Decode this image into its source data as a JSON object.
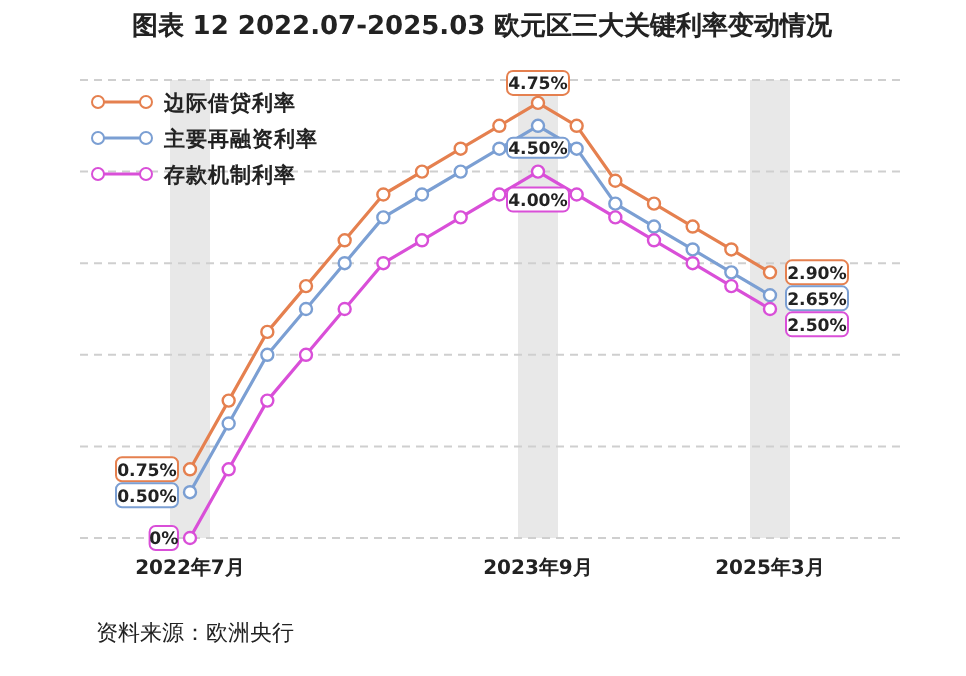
{
  "chart_data": {
    "type": "line",
    "title": "图表 12 2022.07-2025.03 欧元区三大关键利率变动情况",
    "annotations": [
      "资料来源：欧洲央行"
    ],
    "categories": [
      "2022年7月",
      null,
      null,
      null,
      null,
      null,
      null,
      null,
      null,
      "2023年9月",
      null,
      null,
      null,
      null,
      null,
      "2025年3月"
    ],
    "series": [
      {
        "name": "边际借贷利率",
        "color": "#e5804f",
        "values": [
          0.75,
          1.5,
          2.25,
          2.75,
          3.25,
          3.75,
          4.0,
          4.25,
          4.5,
          4.75,
          4.5,
          3.9,
          3.65,
          3.4,
          3.15,
          2.9
        ],
        "value_labels": [
          "0.75%",
          null,
          null,
          null,
          null,
          null,
          null,
          null,
          null,
          "4.75%",
          null,
          null,
          null,
          null,
          null,
          "2.90%"
        ]
      },
      {
        "name": "主要再融资利率",
        "color": "#7b9fd3",
        "values": [
          0.5,
          1.25,
          2.0,
          2.5,
          3.0,
          3.5,
          3.75,
          4.0,
          4.25,
          4.5,
          4.25,
          3.65,
          3.4,
          3.15,
          2.9,
          2.65
        ],
        "value_labels": [
          "0.50%",
          null,
          null,
          null,
          null,
          null,
          null,
          null,
          null,
          "4.50%",
          null,
          null,
          null,
          null,
          null,
          "2.65%"
        ]
      },
      {
        "name": "存款机制利率",
        "color": "#d94fd8",
        "values": [
          0,
          0.75,
          1.5,
          2.0,
          2.5,
          3.0,
          3.25,
          3.5,
          3.75,
          4.0,
          3.75,
          3.5,
          3.25,
          3.0,
          2.75,
          2.5
        ],
        "value_labels": [
          "0%",
          null,
          null,
          null,
          null,
          null,
          null,
          null,
          null,
          "4.00%",
          null,
          null,
          null,
          null,
          null,
          "2.50%"
        ]
      }
    ],
    "ylim": [
      0,
      5
    ],
    "yticks": [
      {
        "value": 0,
        "label": null
      },
      {
        "value": 1,
        "label": null
      },
      {
        "value": 2,
        "label": null
      },
      {
        "value": 3,
        "label": null
      },
      {
        "value": 4,
        "label": null
      },
      {
        "value": 5,
        "label": null
      }
    ],
    "tick_labels": "x",
    "grid": "y",
    "legend": "top left",
    "marker": "circle",
    "line_style": "solid",
    "bands": [
      {
        "axis": "x",
        "from": "2022年7月",
        "to": "2022年7月",
        "color": "#e8e8e8"
      },
      {
        "axis": "x",
        "from": "2023年9月",
        "to": "2023年9月",
        "color": "#e8e8e8"
      },
      {
        "axis": "x",
        "from": "2025年3月",
        "to": "2025年3月",
        "color": "#e8e8e8"
      }
    ]
  }
}
